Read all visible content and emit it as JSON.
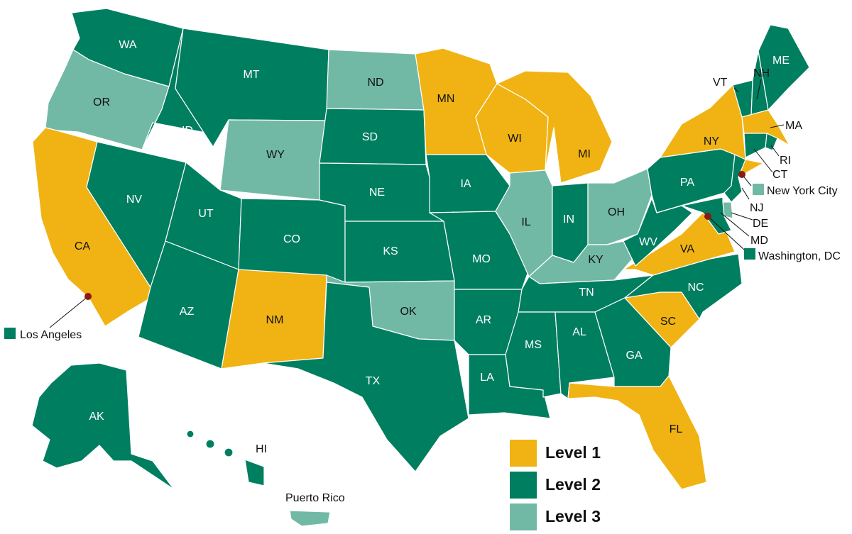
{
  "colors": {
    "level1": "#f0b313",
    "level2": "#007e60",
    "level3": "#72b9a5",
    "city_dot": "#8b1a12"
  },
  "legend": [
    {
      "label": "Level 1",
      "level": "level1"
    },
    {
      "label": "Level 2",
      "level": "level2"
    },
    {
      "label": "Level 3",
      "level": "level3"
    }
  ],
  "states": {
    "WA": {
      "label": "WA",
      "level": "level2"
    },
    "OR": {
      "label": "OR",
      "level": "level3"
    },
    "CA": {
      "label": "CA",
      "level": "level1"
    },
    "ID": {
      "label": "ID",
      "level": "level2"
    },
    "NV": {
      "label": "NV",
      "level": "level2"
    },
    "MT": {
      "label": "MT",
      "level": "level2"
    },
    "WY": {
      "label": "WY",
      "level": "level3"
    },
    "UT": {
      "label": "UT",
      "level": "level2"
    },
    "AZ": {
      "label": "AZ",
      "level": "level2"
    },
    "CO": {
      "label": "CO",
      "level": "level2"
    },
    "NM": {
      "label": "NM",
      "level": "level1"
    },
    "ND": {
      "label": "ND",
      "level": "level3"
    },
    "SD": {
      "label": "SD",
      "level": "level2"
    },
    "NE": {
      "label": "NE",
      "level": "level2"
    },
    "KS": {
      "label": "KS",
      "level": "level2"
    },
    "OK": {
      "label": "OK",
      "level": "level3"
    },
    "TX": {
      "label": "TX",
      "level": "level2"
    },
    "MN": {
      "label": "MN",
      "level": "level1"
    },
    "IA": {
      "label": "IA",
      "level": "level2"
    },
    "MO": {
      "label": "MO",
      "level": "level2"
    },
    "AR": {
      "label": "AR",
      "level": "level2"
    },
    "LA": {
      "label": "LA",
      "level": "level2"
    },
    "WI": {
      "label": "WI",
      "level": "level1"
    },
    "IL": {
      "label": "IL",
      "level": "level3"
    },
    "MI": {
      "label": "MI",
      "level": "level1"
    },
    "IN": {
      "label": "IN",
      "level": "level2"
    },
    "OH": {
      "label": "OH",
      "level": "level3"
    },
    "KY": {
      "label": "KY",
      "level": "level3"
    },
    "TN": {
      "label": "TN",
      "level": "level2"
    },
    "MS": {
      "label": "MS",
      "level": "level2"
    },
    "AL": {
      "label": "AL",
      "level": "level2"
    },
    "GA": {
      "label": "GA",
      "level": "level2"
    },
    "FL": {
      "label": "FL",
      "level": "level1"
    },
    "SC": {
      "label": "SC",
      "level": "level1"
    },
    "NC": {
      "label": "NC",
      "level": "level2"
    },
    "VA": {
      "label": "VA",
      "level": "level1"
    },
    "WV": {
      "label": "WV",
      "level": "level2"
    },
    "PA": {
      "label": "PA",
      "level": "level2"
    },
    "NY": {
      "label": "NY",
      "level": "level1"
    },
    "VT": {
      "label": "VT",
      "level": "level2"
    },
    "NH": {
      "label": "NH",
      "level": "level2"
    },
    "ME": {
      "label": "ME",
      "level": "level2"
    },
    "MA": {
      "label": "MA",
      "level": "level1"
    },
    "RI": {
      "label": "RI",
      "level": "level2"
    },
    "CT": {
      "label": "CT",
      "level": "level2"
    },
    "NJ": {
      "label": "NJ",
      "level": "level2"
    },
    "DE": {
      "label": "DE",
      "level": "level3"
    },
    "MD": {
      "label": "MD",
      "level": "level2"
    },
    "AK": {
      "label": "AK",
      "level": "level2"
    },
    "HI": {
      "label": "HI",
      "level": "level2"
    },
    "PR": {
      "label": "Puerto Rico",
      "level": "level3"
    }
  },
  "cities": {
    "los_angeles": {
      "label": "Los Angeles",
      "level": "level2"
    },
    "new_york_city": {
      "label": "New York City",
      "level": "level3"
    },
    "washington_dc": {
      "label": "Washington, DC",
      "level": "level2"
    }
  }
}
